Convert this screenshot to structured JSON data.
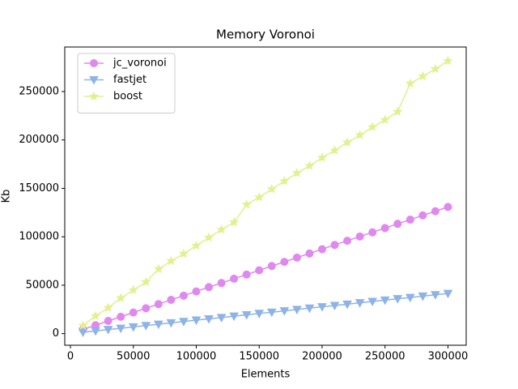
{
  "chart_data": {
    "type": "line",
    "title": "Memory Voronoi",
    "x_label": "Elements",
    "y_label": "Kb",
    "x": [
      10000,
      20000,
      30000,
      40000,
      50000,
      60000,
      70000,
      80000,
      90000,
      100000,
      110000,
      120000,
      130000,
      140000,
      150000,
      160000,
      170000,
      180000,
      190000,
      200000,
      210000,
      220000,
      230000,
      240000,
      250000,
      260000,
      270000,
      280000,
      290000,
      300000
    ],
    "series": [
      {
        "name": "jc_voronoi",
        "color": "#e088f0",
        "marker": "circle",
        "values": [
          4400,
          8700,
          13100,
          17400,
          21800,
          26200,
          30500,
          34900,
          39200,
          43600,
          48000,
          52300,
          56700,
          61000,
          65400,
          69800,
          74100,
          78500,
          82800,
          87200,
          91600,
          95900,
          100300,
          104600,
          109000,
          113400,
          117700,
          122100,
          126400,
          130800
        ]
      },
      {
        "name": "fastjet",
        "color": "#8db3e8",
        "marker": "triangle-down",
        "values": [
          1400,
          2800,
          4200,
          5500,
          6900,
          8300,
          9700,
          11100,
          12500,
          13900,
          15200,
          16600,
          18000,
          19400,
          20800,
          22100,
          23500,
          24900,
          26300,
          27700,
          29000,
          30400,
          31800,
          33200,
          34600,
          36000,
          37300,
          38700,
          40100,
          41500
        ]
      },
      {
        "name": "boost",
        "color": "#e2f08e",
        "marker": "star",
        "values": [
          8300,
          18300,
          26700,
          36700,
          45000,
          53300,
          66700,
          75000,
          82500,
          90800,
          99200,
          107500,
          115000,
          133300,
          140800,
          149200,
          157500,
          165800,
          173300,
          181700,
          189200,
          197500,
          205000,
          213300,
          220800,
          229200,
          258300,
          265800,
          273300,
          281700
        ]
      }
    ],
    "xlim": [
      -4500,
      314500
    ],
    "xticks": [
      0,
      50000,
      100000,
      150000,
      200000,
      250000,
      300000
    ],
    "ylim": [
      -12000,
      296000
    ],
    "yticks": [
      0,
      50000,
      100000,
      150000,
      200000,
      250000
    ],
    "legend": "upper left",
    "grid": false
  }
}
